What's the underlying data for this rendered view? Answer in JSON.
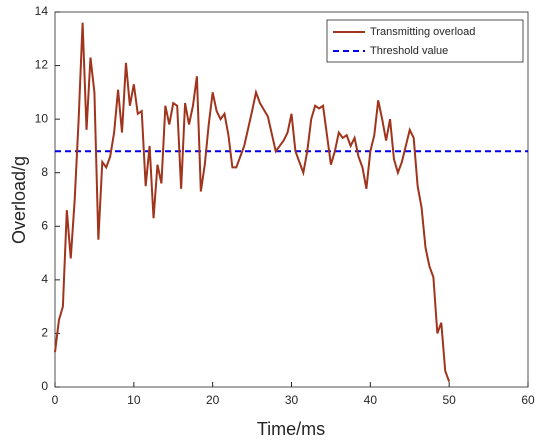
{
  "chart_data": {
    "type": "line",
    "x_label": "Time/ms",
    "y_label": "Overload/g",
    "series": [
      {
        "name": "Transmitting overload",
        "color": "#a0341c",
        "x": [
          0,
          0.5,
          1,
          1.5,
          2,
          2.5,
          3,
          3.5,
          4,
          4.5,
          5,
          5.5,
          6,
          6.5,
          7,
          7.5,
          8,
          8.5,
          9,
          9.5,
          10,
          10.5,
          11,
          11.5,
          12,
          12.5,
          13,
          13.5,
          14,
          14.5,
          15,
          15.5,
          16,
          16.5,
          17,
          17.5,
          18,
          18.5,
          19,
          19.5,
          20,
          20.5,
          21,
          21.5,
          22,
          22.5,
          23,
          24,
          25,
          25.5,
          26,
          27,
          28,
          29,
          29.5,
          30,
          30.5,
          31,
          31.5,
          32,
          32.5,
          33,
          33.5,
          34,
          34.5,
          35,
          35.5,
          36,
          36.5,
          37,
          37.5,
          38,
          38.5,
          39,
          39.5,
          40,
          40.5,
          41,
          41.5,
          42,
          42.5,
          43,
          43.5,
          44,
          44.5,
          45,
          45.5,
          46,
          46.5,
          47,
          47.5,
          48,
          48.5,
          49,
          49.5,
          50
        ],
        "values": [
          1.3,
          2.5,
          3.0,
          6.6,
          4.8,
          7,
          10,
          13.6,
          9.6,
          12.3,
          11,
          5.5,
          8.4,
          8.2,
          8.6,
          9.5,
          11.1,
          9.5,
          12.1,
          10.5,
          11.3,
          10.2,
          10.3,
          7.5,
          9,
          6.3,
          8.3,
          7.6,
          10.5,
          9.8,
          10.6,
          10.5,
          7.4,
          10.6,
          9.8,
          10.5,
          11.6,
          7.3,
          8.3,
          9.8,
          11,
          10.3,
          10,
          10.2,
          9.4,
          8.2,
          8.2,
          9,
          10.3,
          11,
          10.6,
          10.1,
          8.8,
          9.2,
          9.5,
          10.2,
          8.8,
          8.4,
          8.0,
          8.8,
          10,
          10.5,
          10.4,
          10.5,
          9.4,
          8.3,
          8.8,
          9.5,
          9.3,
          9.4,
          9.0,
          9.3,
          8.6,
          8.2,
          7.4,
          8.8,
          9.4,
          10.7,
          10,
          9.2,
          10.0,
          8.5,
          8.0,
          8.4,
          9.0,
          9.6,
          9.3,
          7.5,
          6.7,
          5.2,
          4.5,
          4.1,
          2,
          2.4,
          0.6,
          0.2
        ]
      }
    ],
    "threshold": {
      "name": "Threshold value",
      "color": "#0000ee",
      "value": 8.8
    },
    "xlim": [
      0,
      60
    ],
    "xticks": [
      0,
      10,
      20,
      30,
      40,
      50,
      60
    ],
    "ylim": [
      0,
      14
    ],
    "yticks": [
      0,
      2,
      4,
      6,
      8,
      10,
      12,
      14
    ],
    "legend": "upper right"
  }
}
